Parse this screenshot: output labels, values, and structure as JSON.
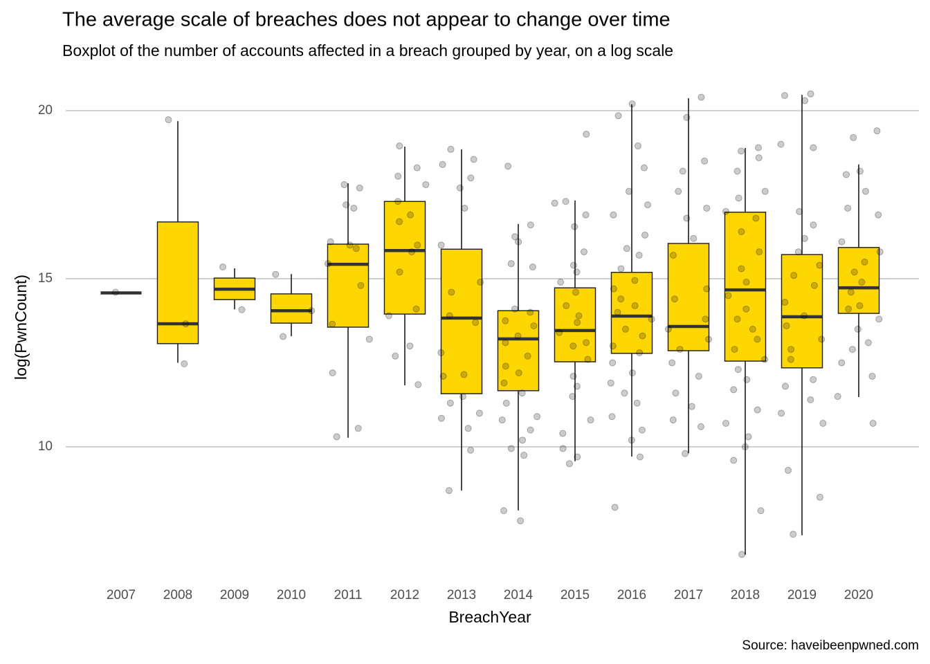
{
  "chart_data": {
    "type": "boxplot",
    "title": "The average scale of breaches does not appear to change over time",
    "subtitle": "Boxplot of the number of accounts affected in a breach grouped by year, on a log scale",
    "x_label": "BreachYear",
    "y_label": "log(PwnCount)",
    "caption": "Source: haveibeenpwned.com",
    "color": "#ffd700",
    "point_color": "#000000",
    "grid": true,
    "ylim": [
      6.4,
      20.7
    ],
    "yticks": [
      10,
      15,
      20
    ],
    "categories": [
      "2007",
      "2008",
      "2009",
      "2010",
      "2011",
      "2012",
      "2013",
      "2014",
      "2015",
      "2016",
      "2017",
      "2018",
      "2019",
      "2020"
    ],
    "boxes": [
      {
        "lower": 14.58,
        "q1": 14.58,
        "median": 14.58,
        "q3": 14.58,
        "upper": 14.58
      },
      {
        "lower": 12.5,
        "q1": 13.07,
        "median": 13.66,
        "q3": 16.69,
        "upper": 19.69
      },
      {
        "lower": 14.09,
        "q1": 14.38,
        "median": 14.69,
        "q3": 15.02,
        "upper": 15.31
      },
      {
        "lower": 13.29,
        "q1": 13.68,
        "median": 14.05,
        "q3": 14.55,
        "upper": 15.14
      },
      {
        "lower": 10.27,
        "q1": 13.56,
        "median": 15.43,
        "q3": 16.03,
        "upper": 17.84
      },
      {
        "lower": 11.83,
        "q1": 13.95,
        "median": 15.84,
        "q3": 17.3,
        "upper": 18.93
      },
      {
        "lower": 8.7,
        "q1": 11.58,
        "median": 13.83,
        "q3": 15.88,
        "upper": 18.85
      },
      {
        "lower": 8.11,
        "q1": 11.67,
        "median": 13.21,
        "q3": 14.05,
        "upper": 16.63
      },
      {
        "lower": 9.57,
        "q1": 12.53,
        "median": 13.46,
        "q3": 14.73,
        "upper": 17.33
      },
      {
        "lower": 9.71,
        "q1": 12.78,
        "median": 13.89,
        "q3": 15.19,
        "upper": 20.19
      },
      {
        "lower": 9.81,
        "q1": 12.86,
        "median": 13.58,
        "q3": 16.05,
        "upper": 20.37
      },
      {
        "lower": 6.79,
        "q1": 12.55,
        "median": 14.67,
        "q3": 16.98,
        "upper": 18.89
      },
      {
        "lower": 7.37,
        "q1": 12.35,
        "median": 13.87,
        "q3": 15.72,
        "upper": 20.47
      },
      {
        "lower": 11.48,
        "q1": 13.97,
        "median": 14.73,
        "q3": 15.93,
        "upper": 18.4
      }
    ],
    "points": [
      [
        14.6
      ],
      [
        19.73,
        13.66,
        12.47
      ],
      [
        15.35,
        14.08
      ],
      [
        15.13,
        14.05,
        13.28
      ],
      [
        17.8,
        17.7,
        17.2,
        17.1,
        16.1,
        16.0,
        15.9,
        15.45,
        14.8,
        13.65,
        13.2,
        12.2,
        10.55,
        10.3
      ],
      [
        18.95,
        18.3,
        18.05,
        17.8,
        17.3,
        16.9,
        16.7,
        16.0,
        15.8,
        15.2,
        14.1,
        13.9,
        13.0,
        12.7,
        11.85
      ],
      [
        18.85,
        18.55,
        18.4,
        18.0,
        17.7,
        17.1,
        16.0,
        14.9,
        14.6,
        13.9,
        13.7,
        12.8,
        12.15,
        12.1,
        11.5,
        11.3,
        11.0,
        10.85,
        10.55,
        9.9,
        8.7
      ],
      [
        18.35,
        16.6,
        16.25,
        16.1,
        15.45,
        15.35,
        14.1,
        14.0,
        13.75,
        13.6,
        13.3,
        13.1,
        12.7,
        12.4,
        12.2,
        11.9,
        11.6,
        11.3,
        10.9,
        10.8,
        10.5,
        10.2,
        9.95,
        9.75,
        8.1,
        7.8
      ],
      [
        19.3,
        17.3,
        17.25,
        16.9,
        16.55,
        15.8,
        15.4,
        15.2,
        14.9,
        14.6,
        14.2,
        13.9,
        13.7,
        13.4,
        13.1,
        13.0,
        12.6,
        12.1,
        11.8,
        11.5,
        10.8,
        10.4,
        9.95,
        9.7,
        9.5
      ],
      [
        20.2,
        19.85,
        18.95,
        18.3,
        17.6,
        17.2,
        16.9,
        16.3,
        15.9,
        15.7,
        15.3,
        14.95,
        14.7,
        14.4,
        14.2,
        14.0,
        13.8,
        13.5,
        13.3,
        13.0,
        12.8,
        12.5,
        12.2,
        11.9,
        11.6,
        11.3,
        10.9,
        10.5,
        10.2,
        9.7,
        8.2
      ],
      [
        20.4,
        19.8,
        18.5,
        18.2,
        17.6,
        17.1,
        16.8,
        16.2,
        15.7,
        14.7,
        14.4,
        13.8,
        13.5,
        13.2,
        12.9,
        12.5,
        12.1,
        11.6,
        11.2,
        10.8,
        10.6,
        9.8
      ],
      [
        18.9,
        18.8,
        18.6,
        18.2,
        17.6,
        17.4,
        17.0,
        16.8,
        16.4,
        15.8,
        15.3,
        14.9,
        14.5,
        14.1,
        13.8,
        13.5,
        13.2,
        12.9,
        12.6,
        12.3,
        12.0,
        11.7,
        11.1,
        10.7,
        10.3,
        10.0,
        9.6,
        8.1,
        6.8
      ],
      [
        20.5,
        20.45,
        20.3,
        19.0,
        18.9,
        17.0,
        16.6,
        16.2,
        15.8,
        15.4,
        15.1,
        14.8,
        14.3,
        13.9,
        13.6,
        13.2,
        12.9,
        12.6,
        12.0,
        11.8,
        11.4,
        11.0,
        10.7,
        9.3,
        8.5,
        7.4
      ],
      [
        19.4,
        19.2,
        18.2,
        18.1,
        17.6,
        17.1,
        16.9,
        16.1,
        15.8,
        15.5,
        15.2,
        14.9,
        14.6,
        14.2,
        14.1,
        13.8,
        13.5,
        13.1,
        12.9,
        12.5,
        12.1,
        11.5,
        10.7
      ]
    ]
  }
}
